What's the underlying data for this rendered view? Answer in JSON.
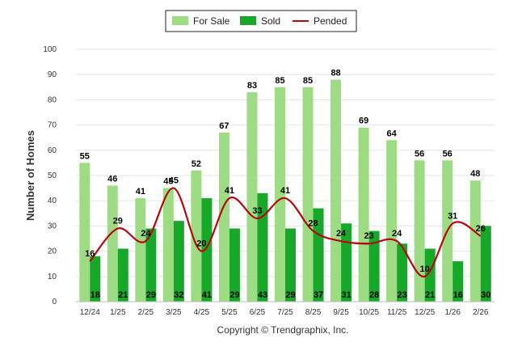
{
  "chart_data": {
    "type": "bar",
    "title": "",
    "xlabel": "",
    "ylabel": "Number of Homes",
    "ylim": [
      0,
      100
    ],
    "yticks": [
      0,
      10,
      20,
      30,
      40,
      50,
      60,
      70,
      80,
      90,
      100
    ],
    "categories": [
      "12/24",
      "1/25",
      "2/25",
      "3/25",
      "4/25",
      "5/25",
      "6/25",
      "7/25",
      "8/25",
      "9/25",
      "10/25",
      "11/25",
      "12/25",
      "1/26",
      "2/26"
    ],
    "series": [
      {
        "name": "For Sale",
        "type": "bar",
        "color": "#9ddc83",
        "values": [
          55,
          46,
          41,
          45,
          52,
          67,
          83,
          85,
          85,
          88,
          69,
          64,
          56,
          56,
          48
        ]
      },
      {
        "name": "Sold",
        "type": "bar",
        "color": "#17a829",
        "values": [
          18,
          21,
          29,
          32,
          41,
          29,
          43,
          29,
          37,
          31,
          28,
          23,
          21,
          16,
          30
        ]
      },
      {
        "name": "Pended",
        "type": "line",
        "color": "#b5090e",
        "values": [
          16,
          29,
          24,
          45,
          20,
          41,
          33,
          41,
          28,
          24,
          23,
          24,
          10,
          31,
          26
        ]
      }
    ],
    "legend": [
      "For Sale",
      "Sold",
      "Pended"
    ],
    "legend_position": "top-center",
    "grid": true
  },
  "footer": {
    "copyright": "Copyright © Trendgraphix, Inc."
  }
}
